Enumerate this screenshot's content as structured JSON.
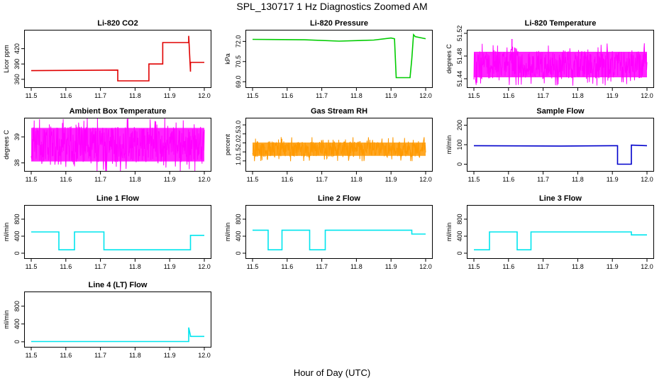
{
  "page": {
    "title": "SPL_130717  1 Hz Diagnostics Zoomed AM",
    "x_caption": "Hour of Day (UTC)"
  },
  "chart_data": [
    {
      "type": "line",
      "title": "Li-820 CO2",
      "ylabel": "Licor ppm",
      "color": "#e00000",
      "xlim": [
        11.5,
        12.0
      ],
      "ylim": [
        350,
        450
      ],
      "yticks": [
        360,
        390,
        420
      ],
      "xticks": [
        11.5,
        11.6,
        11.7,
        11.8,
        11.9,
        12.0
      ],
      "x": [
        11.5,
        11.75,
        11.75,
        11.84,
        11.84,
        11.88,
        11.88,
        11.955,
        11.955,
        11.96,
        11.96,
        12.0
      ],
      "y": [
        377,
        378,
        357,
        357,
        390,
        390,
        432,
        432,
        445,
        375,
        393,
        393
      ]
    },
    {
      "type": "line",
      "title": "Li-820 Pressure",
      "ylabel": "kPa",
      "color": "#00cc00",
      "xlim": [
        11.5,
        12.0
      ],
      "ylim": [
        68.8,
        72.6
      ],
      "yticks": [
        69.0,
        70.5,
        72.0
      ],
      "xticks": [
        11.5,
        11.6,
        11.7,
        11.8,
        11.9,
        12.0
      ],
      "x": [
        11.5,
        11.65,
        11.75,
        11.85,
        11.9,
        11.91,
        11.915,
        11.955,
        11.96,
        11.965,
        11.97,
        12.0
      ],
      "y": [
        72.15,
        72.12,
        72.02,
        72.1,
        72.25,
        72.2,
        69.3,
        69.3,
        70.7,
        72.5,
        72.35,
        72.2
      ]
    },
    {
      "type": "area",
      "title": "Li-820 Temperature",
      "ylabel": "degrees C",
      "color": "#ff00ff",
      "xlim": [
        11.5,
        12.0
      ],
      "ylim": [
        51.43,
        51.52
      ],
      "yticks": [
        51.44,
        51.48,
        51.52
      ],
      "xticks": [
        11.5,
        11.6,
        11.7,
        11.8,
        11.9,
        12.0
      ],
      "band_low": 51.44,
      "band_high": 51.49,
      "spike": {
        "x": 11.61,
        "y": 51.51
      }
    },
    {
      "type": "area",
      "title": "Ambient Box Temperature",
      "ylabel": "degrees C",
      "color": "#ff00ff",
      "xlim": [
        11.5,
        12.0
      ],
      "ylim": [
        37.8,
        39.6
      ],
      "yticks": [
        38.0,
        39.0
      ],
      "xticks": [
        11.5,
        11.6,
        11.7,
        11.8,
        11.9,
        12.0
      ],
      "band_low": 38.0,
      "band_high": 39.4
    },
    {
      "type": "area",
      "title": "Gas Stream RH",
      "ylabel": "percent",
      "color": "#ff9900",
      "xlim": [
        11.5,
        12.0
      ],
      "ylim": [
        0.6,
        3.2
      ],
      "yticks": [
        1.0,
        1.5,
        2.0,
        2.5,
        3.0
      ],
      "xticks": [
        11.5,
        11.6,
        11.7,
        11.8,
        11.9,
        12.0
      ],
      "band_low": 1.2,
      "band_high": 2.1
    },
    {
      "type": "line",
      "title": "Sample Flow",
      "ylabel": "ml/min",
      "color": "#0000cc",
      "xlim": [
        11.5,
        12.0
      ],
      "ylim": [
        -20,
        220
      ],
      "yticks": [
        0,
        100,
        200
      ],
      "xticks": [
        11.5,
        11.6,
        11.7,
        11.8,
        11.9,
        12.0
      ],
      "x": [
        11.5,
        11.75,
        11.9,
        11.915,
        11.915,
        11.955,
        11.955,
        12.0
      ],
      "y": [
        95,
        93,
        95,
        95,
        0,
        0,
        98,
        95
      ]
    },
    {
      "type": "line",
      "title": "Line 1 Flow",
      "ylabel": "ml/min",
      "color": "#00e5ee",
      "xlim": [
        11.5,
        12.0
      ],
      "ylim": [
        -50,
        1050
      ],
      "yticks": [
        0,
        400,
        800
      ],
      "xticks": [
        11.5,
        11.6,
        11.7,
        11.8,
        11.9,
        12.0
      ],
      "x": [
        11.5,
        11.58,
        11.58,
        11.625,
        11.625,
        11.71,
        11.71,
        11.96,
        11.96,
        12.0
      ],
      "y": [
        500,
        500,
        80,
        80,
        500,
        500,
        80,
        80,
        420,
        420
      ]
    },
    {
      "type": "line",
      "title": "Line 2 Flow",
      "ylabel": "ml/min",
      "color": "#00e5ee",
      "xlim": [
        11.5,
        12.0
      ],
      "ylim": [
        -50,
        1050
      ],
      "yticks": [
        0,
        400,
        800
      ],
      "xticks": [
        11.5,
        11.6,
        11.7,
        11.8,
        11.9,
        12.0
      ],
      "x": [
        11.5,
        11.545,
        11.545,
        11.585,
        11.585,
        11.665,
        11.665,
        11.71,
        11.71,
        11.96,
        11.96,
        12.0
      ],
      "y": [
        540,
        540,
        80,
        80,
        540,
        540,
        80,
        80,
        540,
        540,
        450,
        450
      ]
    },
    {
      "type": "line",
      "title": "Line 3 Flow",
      "ylabel": "ml/min",
      "color": "#00e5ee",
      "xlim": [
        11.5,
        12.0
      ],
      "ylim": [
        -50,
        1050
      ],
      "yticks": [
        0,
        400,
        800
      ],
      "xticks": [
        11.5,
        11.6,
        11.7,
        11.8,
        11.9,
        12.0
      ],
      "x": [
        11.5,
        11.545,
        11.545,
        11.625,
        11.625,
        11.665,
        11.665,
        11.955,
        11.955,
        12.0
      ],
      "y": [
        80,
        80,
        500,
        500,
        80,
        80,
        500,
        500,
        430,
        430
      ]
    },
    {
      "type": "line",
      "title": "Line 4 (LT) Flow",
      "ylabel": "ml/min",
      "color": "#00e5ee",
      "xlim": [
        11.5,
        12.0
      ],
      "ylim": [
        -50,
        1050
      ],
      "yticks": [
        0,
        400,
        800
      ],
      "xticks": [
        11.5,
        11.6,
        11.7,
        11.8,
        11.9,
        12.0
      ],
      "x": [
        11.5,
        11.955,
        11.955,
        11.96,
        11.96,
        12.0
      ],
      "y": [
        5,
        5,
        320,
        140,
        120,
        120
      ]
    }
  ]
}
